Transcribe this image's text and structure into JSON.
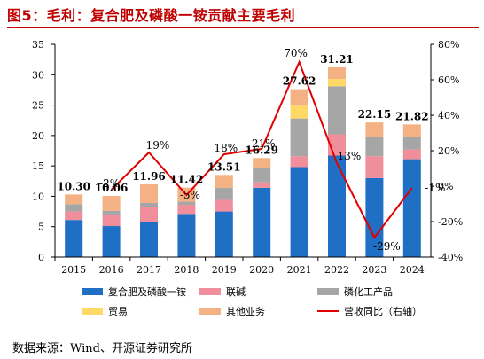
{
  "page": {
    "title": "图5：毛利：复合肥及磷酸一铵贡献主要毛利",
    "source": "数据来源：Wind、开源证券研究所"
  },
  "chart_data": {
    "type": "bar",
    "stacked": true,
    "categories": [
      "2015",
      "2016",
      "2017",
      "2018",
      "2019",
      "2020",
      "2021",
      "2022",
      "2023",
      "2024"
    ],
    "series": [
      {
        "name": "复合肥及磷酸一铵",
        "color": "#1f6fc5",
        "values": [
          6.1,
          5.1,
          5.8,
          7.1,
          7.5,
          11.4,
          14.8,
          16.7,
          13.0,
          16.1
        ]
      },
      {
        "name": "联碱",
        "color": "#f08f9b",
        "values": [
          1.4,
          1.8,
          2.4,
          1.5,
          1.9,
          0.9,
          1.8,
          3.5,
          3.6,
          1.6
        ]
      },
      {
        "name": "磷化工产品",
        "color": "#a6a6a6",
        "values": [
          1.2,
          0.7,
          0.7,
          0.5,
          2.0,
          2.3,
          6.2,
          7.9,
          3.1,
          2.0
        ]
      },
      {
        "name": "贸易",
        "color": "#ffd966",
        "values": [
          0.0,
          0.0,
          0.0,
          0.0,
          0.0,
          0.0,
          2.1,
          1.2,
          0.0,
          0.0
        ]
      },
      {
        "name": "其他业务",
        "color": "#f4b183",
        "values": [
          1.6,
          2.46,
          3.06,
          2.32,
          2.11,
          1.69,
          2.72,
          1.91,
          2.45,
          2.12
        ]
      }
    ],
    "line_series": {
      "name": "营收同比（右轴）",
      "color": "#e00000",
      "values": [
        null,
        -2,
        19,
        -5,
        18,
        21,
        70,
        13,
        -29,
        -1
      ]
    },
    "totals": [
      10.3,
      10.06,
      11.96,
      11.42,
      13.51,
      16.29,
      27.62,
      31.21,
      22.15,
      21.82
    ],
    "total_labels": [
      "10.30",
      "10.06",
      "11.96",
      "11.42",
      "13.51",
      "16.29",
      "27.62",
      "31.21",
      "22.15",
      "21.82"
    ],
    "line_labels": [
      "",
      "-2%",
      "19%",
      "-5%",
      "18%",
      "21%",
      "70%",
      "13%",
      "-29%",
      "-1%"
    ],
    "ylim": [
      0,
      35
    ],
    "y_ticks": [
      "0",
      "5",
      "10",
      "15",
      "20",
      "25",
      "30",
      "35"
    ],
    "y2lim": [
      -40,
      80
    ],
    "y2_ticks": [
      "-40%",
      "-20%",
      "0%",
      "20%",
      "40%",
      "60%",
      "80%"
    ],
    "legend_position": "bottom",
    "grid": false
  }
}
